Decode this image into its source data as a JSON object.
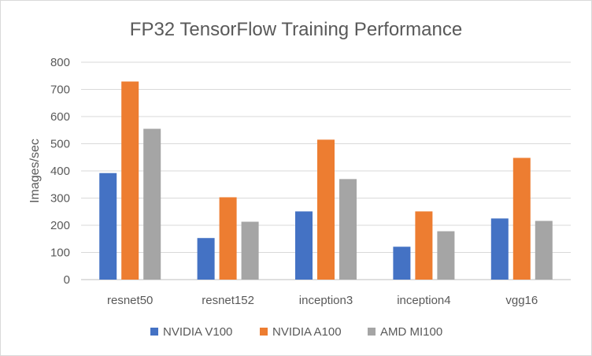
{
  "chart_data": {
    "type": "bar",
    "title": "FP32 TensorFlow Training Performance",
    "xlabel": "",
    "ylabel": "Images/sec",
    "ylim": [
      0,
      800
    ],
    "yticks": [
      0,
      100,
      200,
      300,
      400,
      500,
      600,
      700,
      800
    ],
    "grid": true,
    "legend_position": "bottom",
    "categories": [
      "resnet50",
      "resnet152",
      "inception3",
      "inception4",
      "vgg16"
    ],
    "series": [
      {
        "name": "NVIDIA V100",
        "color": "#4472c4",
        "values": [
          392,
          153,
          251,
          121,
          225
        ]
      },
      {
        "name": "NVIDIA A100",
        "color": "#ed7d31",
        "values": [
          729,
          303,
          515,
          251,
          448
        ]
      },
      {
        "name": "AMD MI100",
        "color": "#a5a5a5",
        "values": [
          555,
          213,
          370,
          178,
          216
        ]
      }
    ]
  }
}
